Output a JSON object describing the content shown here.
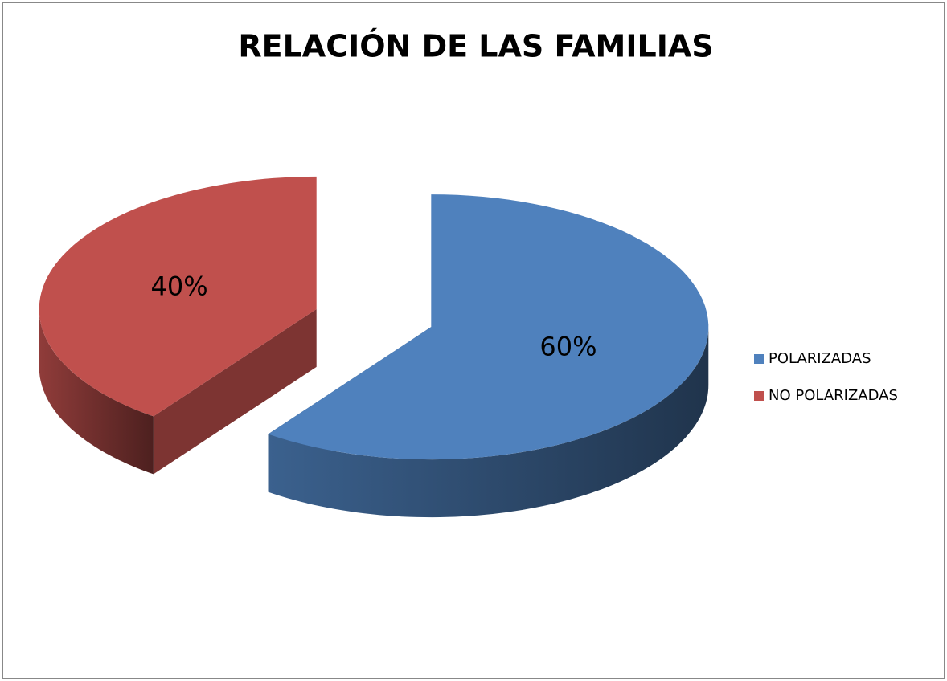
{
  "chart_data": {
    "type": "pie",
    "title": "RELACIÓN DE LAS FAMILIAS",
    "categories": [
      "POLARIZADAS",
      "NO POLARIZADAS"
    ],
    "values": [
      60,
      40
    ],
    "value_labels": [
      "60%",
      "40%"
    ],
    "colors": [
      "#4f81bd",
      "#c0504d"
    ],
    "legend": "right"
  }
}
